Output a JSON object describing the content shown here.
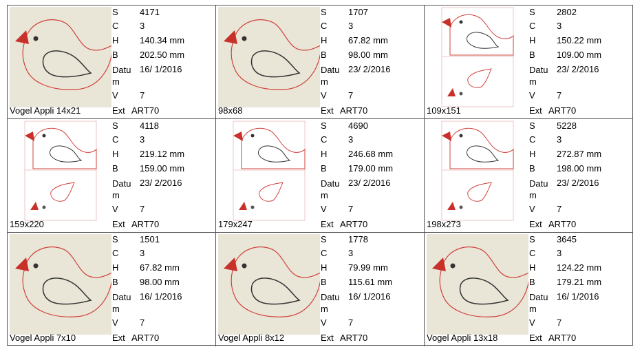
{
  "labels": {
    "s": "S",
    "c": "C",
    "h": "H",
    "b": "B",
    "date": "Datum",
    "v": "V",
    "ext": "Ext"
  },
  "cells": [
    {
      "name": "Vogel Appli 14x21",
      "s": "4171",
      "c": "3",
      "h": "140.34 mm",
      "b": "202.50 mm",
      "date": "16/ 1/2016",
      "v": "7",
      "ext": "ART70"
    },
    {
      "name": "98x68",
      "s": "1707",
      "c": "3",
      "h": "67.82 mm",
      "b": "98.00 mm",
      "date": "23/ 2/2016",
      "v": "7",
      "ext": "ART70"
    },
    {
      "name": "109x151",
      "s": "2802",
      "c": "3",
      "h": "150.22 mm",
      "b": "109.00 mm",
      "date": "23/ 2/2016",
      "v": "7",
      "ext": "ART70"
    },
    {
      "name": "159x220",
      "s": "4118",
      "c": "3",
      "h": "219.12 mm",
      "b": "159.00 mm",
      "date": "23/ 2/2016",
      "v": "7",
      "ext": "ART70"
    },
    {
      "name": "179x247",
      "s": "4690",
      "c": "3",
      "h": "246.68 mm",
      "b": "179.00 mm",
      "date": "23/ 2/2016",
      "v": "7",
      "ext": "ART70"
    },
    {
      "name": "198x273",
      "s": "5228",
      "c": "3",
      "h": "272.87 mm",
      "b": "198.00 mm",
      "date": "23/ 2/2016",
      "v": "7",
      "ext": "ART70"
    },
    {
      "name": "Vogel Appli 7x10",
      "s": "1501",
      "c": "3",
      "h": "67.82 mm",
      "b": "98.00 mm",
      "date": "16/ 1/2016",
      "v": "7",
      "ext": "ART70"
    },
    {
      "name": "Vogel Appli 8x12",
      "s": "1778",
      "c": "3",
      "h": "79.99 mm",
      "b": "115.61 mm",
      "date": "16/ 1/2016",
      "v": "7",
      "ext": "ART70"
    },
    {
      "name": "Vogel Appli 13x18",
      "s": "3645",
      "c": "3",
      "h": "124.22 mm",
      "b": "179.21 mm",
      "date": "16/ 1/2016",
      "v": "7",
      "ext": "ART70"
    }
  ]
}
